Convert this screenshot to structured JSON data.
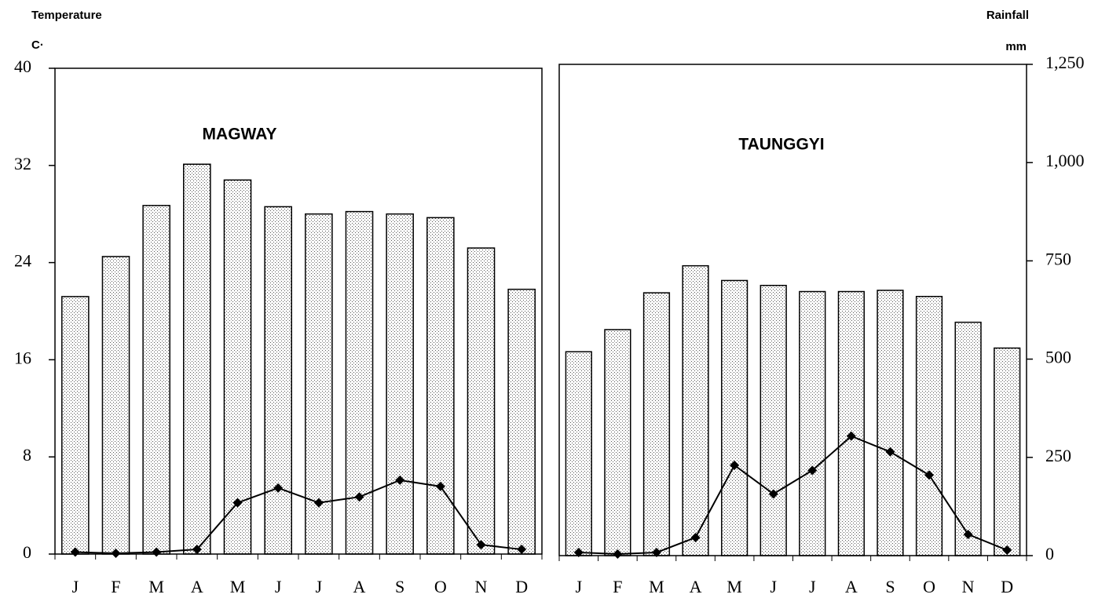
{
  "chart_data": [
    {
      "type": "combo",
      "title": "MAGWAY",
      "ylabel": "Temperature",
      "yunit": "C·",
      "categories": [
        "J",
        "F",
        "M",
        "A",
        "M",
        "J",
        "J",
        "A",
        "S",
        "O",
        "N",
        "D"
      ],
      "ylim": [
        0,
        40
      ],
      "yticks": [
        0,
        8,
        16,
        24,
        32,
        40
      ],
      "y2lim": [
        0,
        1250
      ],
      "series": [
        {
          "type": "bar",
          "color": "#ffffff",
          "values": [
            21.2,
            24.5,
            28.7,
            32.1,
            30.8,
            28.6,
            28.0,
            28.2,
            28.0,
            27.7,
            25.2,
            21.8
          ]
        },
        {
          "type": "line",
          "axis": "y2",
          "color": "#000000",
          "values": [
            5,
            2,
            5,
            12,
            132,
            170,
            132,
            147,
            190,
            174,
            24,
            12
          ]
        }
      ]
    },
    {
      "type": "combo",
      "title": "TAUNGGYI",
      "y2label": "Rainfall",
      "y2unit": "mm",
      "categories": [
        "J",
        "F",
        "M",
        "A",
        "M",
        "J",
        "J",
        "A",
        "S",
        "O",
        "N",
        "D"
      ],
      "ylim": [
        0,
        40
      ],
      "y2lim": [
        0,
        1250
      ],
      "y2ticks": [
        0,
        250,
        500,
        750,
        {
          "value": 1000,
          "label": "1,000"
        },
        {
          "value": 1250,
          "label": "1,250"
        }
      ],
      "series": [
        {
          "type": "bar",
          "color": "#ffffff",
          "values": [
            16.6,
            18.4,
            21.4,
            23.6,
            22.4,
            22.0,
            21.5,
            21.5,
            21.6,
            21.1,
            19.0,
            16.9
          ]
        },
        {
          "type": "line",
          "axis": "y2",
          "color": "#000000",
          "values": [
            8,
            4,
            8,
            46,
            230,
            157,
            217,
            304,
            264,
            205,
            54,
            14
          ]
        }
      ]
    }
  ]
}
